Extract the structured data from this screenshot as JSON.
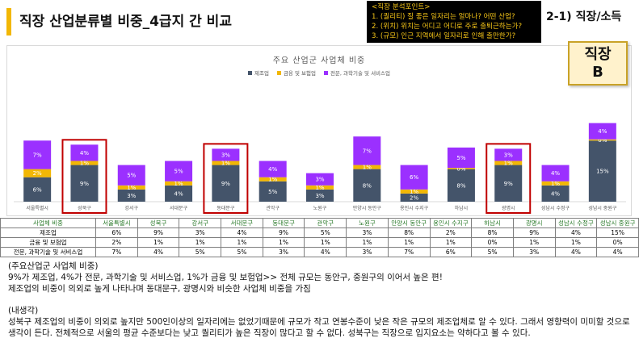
{
  "header": {
    "title": "직장 산업분류별 비중_4급지 간 비교",
    "tag": "2-1) 직장/소득",
    "accent_color": "#f2b705"
  },
  "analysis_points": {
    "heading": "<직장 분석포인트>",
    "items": [
      "1. (퀄리티) 질 좋은 일자리는 얼마나? 어떤 산업?",
      "2. (위치) 위치는 어디고 어디로 주로 출퇴근하는가?",
      "3. (규모) 인근 지역에서 일자리로 인해 출만한가?"
    ],
    "text_color": "#f5c518"
  },
  "badge": {
    "line1": "직장",
    "line2": "B"
  },
  "chart_data": {
    "type": "bar",
    "stacked": true,
    "title": "주요 산업군 사업체 비중",
    "legend_position": "top",
    "categories": [
      "서울특별시",
      "성북구",
      "강서구",
      "서대문구",
      "동대문구",
      "관악구",
      "노원구",
      "안양시 동안구",
      "용인시 수지구",
      "하남시",
      "광명시",
      "성남시 수정구",
      "성남시 중원구"
    ],
    "series": [
      {
        "name": "제조업",
        "color": "#44546a",
        "values": [
          6,
          9,
          3,
          4,
          9,
          5,
          3,
          8,
          2,
          8,
          9,
          4,
          15
        ]
      },
      {
        "name": "금융 및 보험업",
        "color": "#f2b705",
        "values": [
          2,
          1,
          1,
          1,
          1,
          1,
          1,
          1,
          1,
          0,
          1,
          1,
          0
        ]
      },
      {
        "name": "전문, 과학기술 및 서비스업",
        "color": "#9b30ff",
        "values": [
          7,
          4,
          5,
          5,
          3,
          4,
          3,
          7,
          6,
          5,
          3,
          4,
          4
        ]
      }
    ],
    "data_labels": [
      [
        "6%",
        "9%",
        "3%",
        "4%",
        "9%",
        "5%",
        "3%",
        "8%",
        "2%",
        "8%",
        "9%",
        "4%",
        "15%"
      ],
      [
        "2%",
        "1%",
        "1%",
        "1%",
        "1%",
        "1%",
        "1%",
        "1%",
        "1%",
        "0%",
        "1%",
        "1%",
        "0%"
      ],
      [
        "7%",
        "4%",
        "5%",
        "5%",
        "3%",
        "4%",
        "3%",
        "7%",
        "6%",
        "5%",
        "3%",
        "4%",
        "4%"
      ]
    ],
    "highlighted": [
      "성북구",
      "동대문구",
      "광명시"
    ],
    "highlight_color": "#c00000",
    "grid": false
  },
  "table": {
    "header_label": "사업체 비중",
    "header_color": "#2a7a2a",
    "columns": [
      "서울특별시",
      "성북구",
      "강서구",
      "서대문구",
      "동대문구",
      "관악구",
      "노원구",
      "안양시 동안구",
      "용인시 수지구",
      "하남시",
      "광명시",
      "성남시 수정구",
      "성남시 중원구"
    ],
    "rows": [
      {
        "label": "제조업",
        "values": [
          "6%",
          "9%",
          "3%",
          "4%",
          "9%",
          "5%",
          "3%",
          "8%",
          "2%",
          "8%",
          "9%",
          "4%",
          "15%"
        ]
      },
      {
        "label": "금융 및 보험업",
        "values": [
          "2%",
          "1%",
          "1%",
          "1%",
          "1%",
          "1%",
          "1%",
          "1%",
          "1%",
          "0%",
          "1%",
          "1%",
          "0%"
        ]
      },
      {
        "label": "전문, 과학기술 및 서비스업",
        "values": [
          "7%",
          "4%",
          "5%",
          "5%",
          "3%",
          "4%",
          "3%",
          "7%",
          "6%",
          "5%",
          "3%",
          "4%",
          "4%"
        ]
      }
    ]
  },
  "notes": {
    "section1_heading": "(주요산업군 사업체 비중)",
    "section1_lines": [
      "9%가 제조업, 4%가 전문, 과학기술 및 서비스업, 1%가 금융 및 보험업>> 전체 규모는 동안구, 중원구의 이어서 높은 편!",
      "제조업의 비중이 의외로 높게 나타나며 동대문구, 광명시와 비슷한 사업체 비중을 가짐"
    ],
    "section2_heading": "(내생각)",
    "section2_text": "성북구 제조업의 비중이 의외로 높지만 500인이상의 일자리에는 없었기때문에 규모가 작고 연봉수준이 낮은 작은 규모의 제조업체로 알 수 있다. 그래서 영향력이 미미할 것으로 생각이 든다. 전체적으로 서울의 평균 수준보다는 낮고 퀄리티가 높은 직장이 많다고 할 수 없다. 성북구는 직장으로 입지요소는 약하다고 볼 수 있다."
  }
}
